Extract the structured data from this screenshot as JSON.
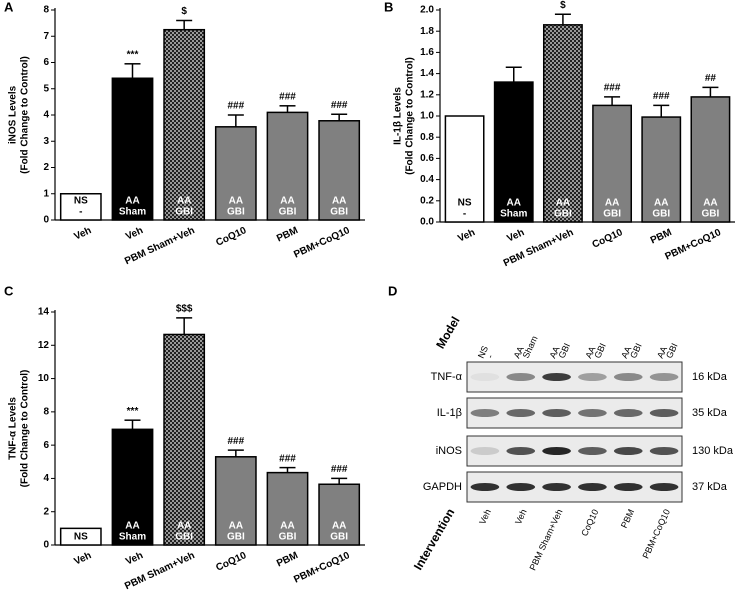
{
  "chart_data": [
    {
      "type": "bar",
      "panel": "A",
      "y_label": [
        "iNOS Levels",
        "(Fold Change to Control)"
      ],
      "categories": [
        "Veh",
        "Veh",
        "PBM Sham+Veh",
        "CoQ10",
        "PBM",
        "PBM+CoQ10"
      ],
      "inner_labels": [
        [
          "NS",
          "-"
        ],
        [
          "AA",
          "Sham"
        ],
        [
          "AA",
          "GBI"
        ],
        [
          "AA",
          "GBI"
        ],
        [
          "AA",
          "GBI"
        ],
        [
          "AA",
          "GBI"
        ]
      ],
      "values": [
        1.0,
        5.4,
        7.25,
        3.55,
        4.1,
        3.78
      ],
      "errors": [
        0,
        0.55,
        0.35,
        0.45,
        0.25,
        0.25
      ],
      "annotations": [
        null,
        "***",
        "$",
        "###",
        "###",
        "###"
      ],
      "fills": [
        "#ffffff",
        "#000000",
        "#555555",
        "#808080",
        "#808080",
        "#808080"
      ],
      "patterned": [
        false,
        false,
        true,
        false,
        false,
        false
      ],
      "ylim": [
        0,
        8
      ],
      "yticks": [
        0,
        1,
        2,
        3,
        4,
        5,
        6,
        7,
        8
      ]
    },
    {
      "type": "bar",
      "panel": "B",
      "y_label": [
        "IL-1β Levels",
        "(Fold Change to Control)"
      ],
      "categories": [
        "Veh",
        "Veh",
        "PBM Sham+Veh",
        "CoQ10",
        "PBM",
        "PBM+CoQ10"
      ],
      "inner_labels": [
        [
          "NS",
          "-"
        ],
        [
          "AA",
          "Sham"
        ],
        [
          "AA",
          "GBI"
        ],
        [
          "AA",
          "GBI"
        ],
        [
          "AA",
          "GBI"
        ],
        [
          "AA",
          "GBI"
        ]
      ],
      "values": [
        1.0,
        1.32,
        1.86,
        1.1,
        0.99,
        1.18
      ],
      "errors": [
        0,
        0.14,
        0.1,
        0.08,
        0.11,
        0.09
      ],
      "annotations": [
        null,
        null,
        "$",
        "###",
        "###",
        "##"
      ],
      "fills": [
        "#ffffff",
        "#000000",
        "#555555",
        "#808080",
        "#808080",
        "#808080"
      ],
      "patterned": [
        false,
        false,
        true,
        false,
        false,
        false
      ],
      "ylim": [
        0,
        2
      ],
      "yticks": [
        {
          "value": 0,
          "label": "0.0"
        },
        0.2,
        0.4,
        0.6,
        0.8,
        {
          "value": 1,
          "label": "1.0"
        },
        1.2,
        1.4,
        1.6,
        1.8,
        {
          "value": 2,
          "label": "2.0"
        }
      ]
    },
    {
      "type": "bar",
      "panel": "C",
      "y_label": [
        "TNF-α Levels",
        "(Fold Change to Control)"
      ],
      "categories": [
        "Veh",
        "Veh",
        "PBM Sham+Veh",
        "CoQ10",
        "PBM",
        "PBM+CoQ10"
      ],
      "inner_labels": [
        [
          "NS"
        ],
        [
          "AA",
          "Sham"
        ],
        [
          "AA",
          "GBI"
        ],
        [
          "AA",
          "GBI"
        ],
        [
          "AA",
          "GBI"
        ],
        [
          "AA",
          "GBI"
        ]
      ],
      "values": [
        1.0,
        6.95,
        12.65,
        5.3,
        4.35,
        3.65
      ],
      "errors": [
        0,
        0.55,
        1.0,
        0.4,
        0.3,
        0.35
      ],
      "annotations": [
        null,
        "***",
        "$$$",
        "###",
        "###",
        "###"
      ],
      "fills": [
        "#ffffff",
        "#000000",
        "#555555",
        "#808080",
        "#808080",
        "#808080"
      ],
      "patterned": [
        false,
        false,
        true,
        false,
        false,
        false
      ],
      "ylim": [
        0,
        14
      ],
      "yticks": [
        0,
        2,
        4,
        6,
        8,
        10,
        12,
        14
      ]
    }
  ],
  "blot": {
    "panel": "D",
    "header": "Model",
    "lanes": [
      [
        "NS",
        "-"
      ],
      [
        "AA",
        "Sham"
      ],
      [
        "AA",
        "GBI"
      ],
      [
        "AA",
        "GBI"
      ],
      [
        "AA",
        "GBI"
      ],
      [
        "AA",
        "GBI"
      ]
    ],
    "rows": [
      {
        "label": "TNF-α",
        "size": "16 kDa"
      },
      {
        "label": "IL-1β",
        "size": "35 kDa"
      },
      {
        "label": "iNOS",
        "size": "130 kDa"
      },
      {
        "label": "GAPDH",
        "size": "37 kDa"
      }
    ],
    "footer": "Intervention",
    "interventions": [
      "Veh",
      "Veh",
      "PBM Sham+Veh",
      "CoQ10",
      "PBM",
      "PBM+CoQ10"
    ]
  }
}
